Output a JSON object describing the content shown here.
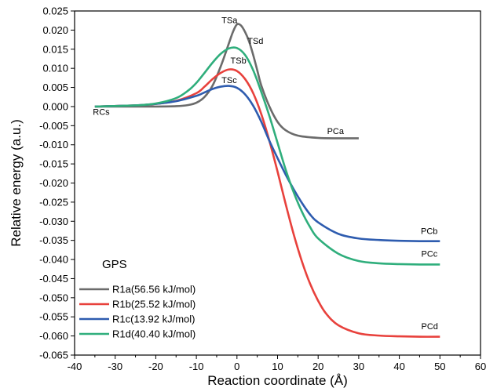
{
  "chart_data": {
    "type": "line",
    "title": "",
    "xlabel": "Reaction coordinate (Å)",
    "ylabel": "Relative energy (a.u.)",
    "xlim": [
      -40,
      60
    ],
    "ylim": [
      -0.065,
      0.025
    ],
    "xticks": [
      -40,
      -30,
      -20,
      -10,
      0,
      10,
      20,
      30,
      40,
      50,
      60
    ],
    "yticks": [
      0.025,
      0.02,
      0.015,
      0.01,
      0.005,
      0.0,
      -0.005,
      -0.01,
      -0.015,
      -0.02,
      -0.025,
      -0.03,
      -0.035,
      -0.04,
      -0.045,
      -0.05,
      -0.055,
      -0.06,
      -0.065
    ],
    "ytick_labels": [
      "0.025",
      "0.020",
      "0.015",
      "0.010",
      "0.005",
      "0.000",
      "-0.005",
      "-0.010",
      "-0.015",
      "-0.020",
      "-0.025",
      "-0.030",
      "-0.035",
      "-0.040",
      "-0.045",
      "-0.050",
      "-0.055",
      "-0.060",
      "-0.065"
    ],
    "grid": false,
    "legend": {
      "title": "GPS",
      "placement": "bottom-left"
    },
    "series": [
      {
        "name": "R1a(56.56 kJ/mol)",
        "color": "#6b6b6b",
        "x": [
          -35,
          -25,
          -20,
          -15,
          -12,
          -10,
          -8,
          -6,
          -4,
          -2,
          -1,
          0,
          1,
          2,
          3,
          4,
          5,
          6,
          8,
          10,
          12,
          15,
          20,
          25,
          30
        ],
        "y": [
          0.0,
          0.0,
          0.0,
          0.0001,
          0.0004,
          0.001,
          0.0025,
          0.0055,
          0.0105,
          0.0165,
          0.0195,
          0.0215,
          0.0212,
          0.0195,
          0.017,
          0.0135,
          0.0095,
          0.0055,
          0.0,
          -0.004,
          -0.0062,
          -0.0076,
          -0.0082,
          -0.0083,
          -0.0083
        ]
      },
      {
        "name": "R1b(25.52 kJ/mol)",
        "color": "#e8413c",
        "x": [
          -35,
          -25,
          -20,
          -15,
          -10,
          -8,
          -6,
          -4,
          -2,
          0,
          2,
          4,
          6,
          8,
          10,
          12,
          14,
          16,
          18,
          20,
          22,
          25,
          30,
          35,
          40,
          45,
          50
        ],
        "y": [
          0.0,
          0.0003,
          0.0007,
          0.0015,
          0.0035,
          0.0052,
          0.0072,
          0.0088,
          0.0097,
          0.0093,
          0.0072,
          0.0035,
          -0.002,
          -0.009,
          -0.017,
          -0.0255,
          -0.0335,
          -0.0405,
          -0.0463,
          -0.0508,
          -0.0542,
          -0.0572,
          -0.0593,
          -0.0599,
          -0.0601,
          -0.0602,
          -0.0602
        ]
      },
      {
        "name": "R1c(13.92 kJ/mol)",
        "color": "#2e5caf",
        "x": [
          -35,
          -25,
          -20,
          -15,
          -10,
          -8,
          -6,
          -4,
          -2,
          0,
          2,
          4,
          6,
          8,
          10,
          12,
          14,
          16,
          18,
          20,
          25,
          30,
          35,
          40,
          45,
          50
        ],
        "y": [
          0.0,
          0.0003,
          0.0007,
          0.0014,
          0.0028,
          0.0037,
          0.0046,
          0.0052,
          0.0054,
          0.0049,
          0.0032,
          0.0002,
          -0.004,
          -0.009,
          -0.0135,
          -0.0178,
          -0.0217,
          -0.0252,
          -0.0282,
          -0.0303,
          -0.0333,
          -0.0345,
          -0.0349,
          -0.0351,
          -0.0352,
          -0.0352
        ]
      },
      {
        "name": "R1d(40.40 kJ/mol)",
        "color": "#2fae7c",
        "x": [
          -35,
          -25,
          -20,
          -15,
          -12,
          -10,
          -8,
          -6,
          -4,
          -2,
          0,
          2,
          4,
          6,
          8,
          10,
          12,
          14,
          16,
          18,
          20,
          25,
          30,
          35,
          40,
          45,
          50
        ],
        "y": [
          0.0,
          0.0003,
          0.0008,
          0.0022,
          0.0042,
          0.0062,
          0.0088,
          0.0115,
          0.0138,
          0.0152,
          0.0153,
          0.0135,
          0.0095,
          0.0038,
          -0.0025,
          -0.0095,
          -0.0165,
          -0.0225,
          -0.0275,
          -0.0315,
          -0.0345,
          -0.0385,
          -0.0404,
          -0.041,
          -0.0412,
          -0.0413,
          -0.0413
        ]
      }
    ],
    "annotations": [
      {
        "text": "TSa",
        "x": -3.8,
        "y": 0.0218
      },
      {
        "text": "TSd",
        "x": 2.6,
        "y": 0.0164
      },
      {
        "text": "TSb",
        "x": -1.6,
        "y": 0.0113
      },
      {
        "text": "TSc",
        "x": -3.8,
        "y": 0.0061
      },
      {
        "text": "RCs",
        "x": -35.5,
        "y": -0.0022
      },
      {
        "text": "PCa",
        "x": 22.2,
        "y": -0.0072
      },
      {
        "text": "PCb",
        "x": 45.3,
        "y": -0.0333
      },
      {
        "text": "PCc",
        "x": 45.4,
        "y": -0.0393
      },
      {
        "text": "PCd",
        "x": 45.4,
        "y": -0.0582
      }
    ]
  }
}
